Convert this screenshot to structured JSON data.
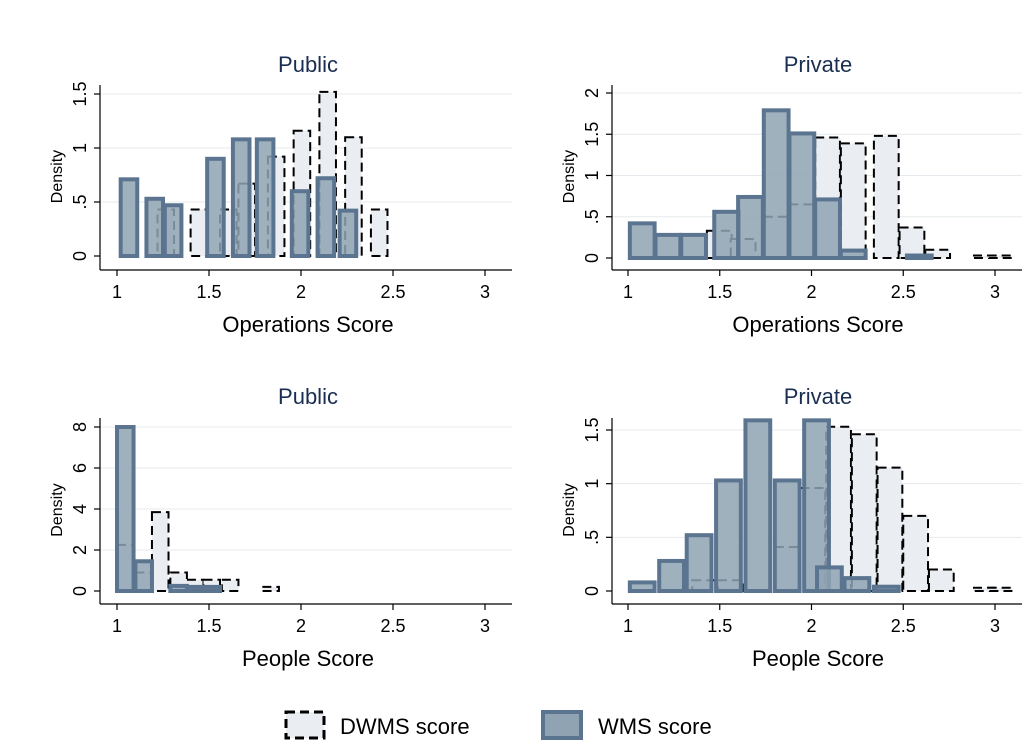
{
  "legend": {
    "dwms_label": "DWMS score",
    "wms_label": "WMS score"
  },
  "colors": {
    "wms_fill": "#8fa3b3",
    "wms_stroke": "#5b7490",
    "dwms_fill": "#eaedf1",
    "dwms_stroke": "#000000",
    "grid": "#e6eaee",
    "title": "#1a2e52"
  },
  "chart_data": [
    {
      "type": "bar",
      "title": "Public",
      "xlabel": "Operations Score",
      "ylabel": "Density",
      "xlim": [
        0.95,
        3.1
      ],
      "ylim": [
        0,
        1.6
      ],
      "xticks": [
        "1",
        "1.5",
        "2",
        "2.5",
        "3"
      ],
      "xtick_values": [
        1,
        1.5,
        2,
        2.5,
        3
      ],
      "yticks": [
        "0",
        ".5",
        "1",
        "1.5"
      ],
      "ytick_values": [
        0,
        0.5,
        1,
        1.5
      ],
      "grid": true,
      "bin_width": 0.09,
      "series": [
        {
          "name": "DWMS score",
          "bins": [
            [
              1.22,
              0.43
            ],
            [
              1.4,
              0.43
            ],
            [
              1.56,
              0.43
            ],
            [
              1.66,
              0.67
            ],
            [
              1.82,
              0.92
            ],
            [
              1.96,
              1.16
            ],
            [
              2.1,
              1.52
            ],
            [
              2.24,
              1.1
            ],
            [
              2.38,
              0.43
            ]
          ]
        },
        {
          "name": "WMS score",
          "bins": [
            [
              1.02,
              0.71
            ],
            [
              1.16,
              0.53
            ],
            [
              1.26,
              0.47
            ],
            [
              1.49,
              0.9
            ],
            [
              1.63,
              1.08
            ],
            [
              1.76,
              1.08
            ],
            [
              1.95,
              0.6
            ],
            [
              2.09,
              0.72
            ],
            [
              2.21,
              0.42
            ]
          ]
        }
      ]
    },
    {
      "type": "bar",
      "title": "Private",
      "xlabel": "Operations Score",
      "ylabel": "Density",
      "xlim": [
        0.95,
        3.1
      ],
      "ylim": [
        0,
        2.1
      ],
      "xticks": [
        "1",
        "1.5",
        "2",
        "2.5",
        "3"
      ],
      "xtick_values": [
        1,
        1.5,
        2,
        2.5,
        3
      ],
      "yticks": [
        "0",
        ".5",
        "1",
        "1.5",
        "2"
      ],
      "ytick_values": [
        0,
        0.5,
        1,
        1.5,
        2
      ],
      "grid": true,
      "bin_width": 0.135,
      "series": [
        {
          "name": "DWMS score",
          "bins": [
            [
              1.43,
              0.33
            ],
            [
              1.56,
              0.23
            ],
            [
              1.74,
              0.5
            ],
            [
              1.88,
              0.65
            ],
            [
              2.02,
              1.46
            ],
            [
              2.16,
              1.39
            ],
            [
              2.34,
              1.48
            ],
            [
              2.48,
              0.37
            ],
            [
              2.62,
              0.1
            ],
            [
              2.88,
              0.03
            ],
            [
              2.96,
              0.03
            ]
          ]
        },
        {
          "name": "WMS score",
          "bins": [
            [
              1.01,
              0.42
            ],
            [
              1.15,
              0.28
            ],
            [
              1.29,
              0.28
            ],
            [
              1.47,
              0.56
            ],
            [
              1.6,
              0.74
            ],
            [
              1.74,
              1.79
            ],
            [
              1.88,
              1.51
            ],
            [
              2.02,
              0.71
            ],
            [
              2.16,
              0.09
            ],
            [
              2.52,
              0.03
            ]
          ]
        }
      ]
    },
    {
      "type": "bar",
      "title": "Public",
      "xlabel": "People Score",
      "ylabel": "Density",
      "xlim": [
        0.95,
        3.1
      ],
      "ylim": [
        0,
        8.6
      ],
      "xticks": [
        "1",
        "1.5",
        "2",
        "2.5",
        "3"
      ],
      "xtick_values": [
        1,
        1.5,
        2,
        2.5,
        3
      ],
      "yticks": [
        "0",
        "2",
        "4",
        "6",
        "8"
      ],
      "ytick_values": [
        0,
        2,
        4,
        6,
        8
      ],
      "grid": true,
      "bin_width": 0.09,
      "series": [
        {
          "name": "DWMS score",
          "bins": [
            [
              1.0,
              2.25
            ],
            [
              1.1,
              0.9
            ],
            [
              1.19,
              3.85
            ],
            [
              1.29,
              0.9
            ],
            [
              1.38,
              0.55
            ],
            [
              1.47,
              0.55
            ],
            [
              1.57,
              0.55
            ],
            [
              1.79,
              0.2
            ]
          ]
        },
        {
          "name": "WMS score",
          "bins": [
            [
              1.0,
              8.0
            ],
            [
              1.1,
              1.45
            ],
            [
              1.29,
              0.25
            ],
            [
              1.38,
              0.2
            ],
            [
              1.47,
              0.2
            ]
          ]
        }
      ]
    },
    {
      "type": "bar",
      "title": "Private",
      "xlabel": "People Score",
      "ylabel": "Density",
      "xlim": [
        0.95,
        3.1
      ],
      "ylim": [
        0,
        1.65
      ],
      "xticks": [
        "1",
        "1.5",
        "2",
        "2.5",
        "3"
      ],
      "xtick_values": [
        1,
        1.5,
        2,
        2.5,
        3
      ],
      "yticks": [
        "0",
        ".5",
        "1",
        "1.5"
      ],
      "ytick_values": [
        0,
        0.5,
        1,
        1.5
      ],
      "grid": true,
      "bin_width": 0.135,
      "series": [
        {
          "name": "DWMS score",
          "bins": [
            [
              1.35,
              0.1
            ],
            [
              1.49,
              0.1
            ],
            [
              1.8,
              0.41
            ],
            [
              1.94,
              0.96
            ],
            [
              2.08,
              1.53
            ],
            [
              2.22,
              1.46
            ],
            [
              2.36,
              1.15
            ],
            [
              2.5,
              0.7
            ],
            [
              2.64,
              0.2
            ],
            [
              2.88,
              0.03
            ],
            [
              2.96,
              0.03
            ]
          ]
        },
        {
          "name": "WMS score",
          "bins": [
            [
              1.01,
              0.08
            ],
            [
              1.17,
              0.28
            ],
            [
              1.32,
              0.52
            ],
            [
              1.48,
              1.03
            ],
            [
              1.64,
              1.59
            ],
            [
              1.8,
              1.03
            ],
            [
              1.96,
              1.59
            ],
            [
              2.03,
              0.22
            ],
            [
              2.18,
              0.12
            ],
            [
              2.34,
              0.04
            ]
          ]
        }
      ]
    }
  ]
}
